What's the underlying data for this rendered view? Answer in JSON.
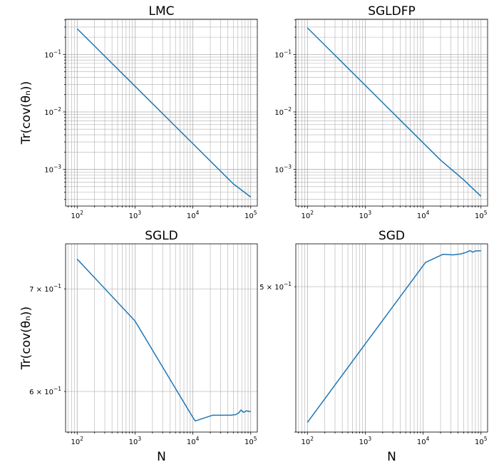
{
  "chart_data": [
    {
      "type": "line",
      "title": "LMC",
      "ylabel": "Tr(cov(θₙ))",
      "xlabel": "",
      "xscale": "log",
      "yscale": "log",
      "xlim": [
        63,
        130000
      ],
      "ylim": [
        0.00023,
        0.41
      ],
      "grid": "both, major and minor",
      "x": [
        100,
        200,
        500,
        1000,
        2000,
        5000,
        10000,
        20000,
        50000,
        100000
      ],
      "y": [
        0.28,
        0.14,
        0.056,
        0.028,
        0.014,
        0.0056,
        0.0028,
        0.0014,
        0.00056,
        0.00033
      ],
      "xticks": [
        {
          "v": 100,
          "base": "10",
          "exp": "2"
        },
        {
          "v": 1000,
          "base": "10",
          "exp": "3"
        },
        {
          "v": 10000,
          "base": "10",
          "exp": "4"
        },
        {
          "v": 100000,
          "base": "10",
          "exp": "5"
        }
      ],
      "yticks": [
        {
          "v": 0.1,
          "base": "10",
          "exp": "−1"
        },
        {
          "v": 0.01,
          "base": "10",
          "exp": "−2"
        },
        {
          "v": 0.001,
          "base": "10",
          "exp": "−3"
        }
      ],
      "line_color": "#1f77b4"
    },
    {
      "type": "line",
      "title": "SGLDFP",
      "ylabel": "",
      "xlabel": "",
      "xscale": "log",
      "yscale": "log",
      "xlim": [
        63,
        130000
      ],
      "ylim": [
        0.00023,
        0.41
      ],
      "grid": "both, major and minor",
      "x": [
        100,
        200,
        500,
        1000,
        2000,
        5000,
        10000,
        20000,
        50000,
        100000
      ],
      "y": [
        0.29,
        0.145,
        0.058,
        0.029,
        0.0145,
        0.0058,
        0.0029,
        0.00145,
        0.00066,
        0.00034
      ],
      "xticks": [
        {
          "v": 100,
          "base": "10",
          "exp": "2"
        },
        {
          "v": 1000,
          "base": "10",
          "exp": "3"
        },
        {
          "v": 10000,
          "base": "10",
          "exp": "4"
        },
        {
          "v": 100000,
          "base": "10",
          "exp": "5"
        }
      ],
      "yticks": [
        {
          "v": 0.1,
          "base": "10",
          "exp": "−1"
        },
        {
          "v": 0.01,
          "base": "10",
          "exp": "−2"
        },
        {
          "v": 0.001,
          "base": "10",
          "exp": "−3"
        }
      ],
      "line_color": "#1f77b4"
    },
    {
      "type": "line",
      "title": "SGLD",
      "ylabel": "Tr(cov(θₙ))",
      "xlabel": "N",
      "xscale": "log",
      "yscale": "log",
      "xlim": [
        63,
        130000
      ],
      "ylim": [
        0.5645,
        0.749
      ],
      "grid": "both, major and minor",
      "x": [
        100,
        1000,
        10000,
        11000,
        22000,
        45000,
        55000,
        62000,
        68000,
        75000,
        85000,
        100000
      ],
      "y": [
        0.732,
        0.667,
        0.577,
        0.574,
        0.579,
        0.579,
        0.5795,
        0.581,
        0.5835,
        0.5815,
        0.5828,
        0.582
      ],
      "xticks": [
        {
          "v": 100,
          "base": "10",
          "exp": "2"
        },
        {
          "v": 1000,
          "base": "10",
          "exp": "3"
        },
        {
          "v": 10000,
          "base": "10",
          "exp": "4"
        },
        {
          "v": 100000,
          "base": "10",
          "exp": "5"
        }
      ],
      "yticks": [
        {
          "v": 0.7,
          "coef": "7",
          "base": "10",
          "exp": "−1"
        },
        {
          "v": 0.6,
          "coef": "6",
          "base": "10",
          "exp": "−1"
        }
      ],
      "line_color": "#1f77b4"
    },
    {
      "type": "line",
      "title": "SGD",
      "ylabel": "",
      "xlabel": "N",
      "xscale": "log",
      "yscale": "log",
      "xlim": [
        63,
        130000
      ],
      "ylim": [
        0.4,
        0.534
      ],
      "grid": "both, major and minor",
      "x": [
        100,
        1000,
        11000,
        22000,
        33000,
        45000,
        55000,
        65000,
        72000,
        80000,
        100000
      ],
      "y": [
        0.406,
        0.458,
        0.519,
        0.5255,
        0.525,
        0.5258,
        0.527,
        0.5285,
        0.5272,
        0.5282,
        0.5283
      ],
      "xticks": [
        {
          "v": 100,
          "base": "10",
          "exp": "2"
        },
        {
          "v": 1000,
          "base": "10",
          "exp": "3"
        },
        {
          "v": 10000,
          "base": "10",
          "exp": "4"
        },
        {
          "v": 100000,
          "base": "10",
          "exp": "5"
        }
      ],
      "yticks": [
        {
          "v": 0.5,
          "coef": "5",
          "base": "10",
          "exp": "−1"
        }
      ],
      "line_color": "#1f77b4"
    }
  ]
}
